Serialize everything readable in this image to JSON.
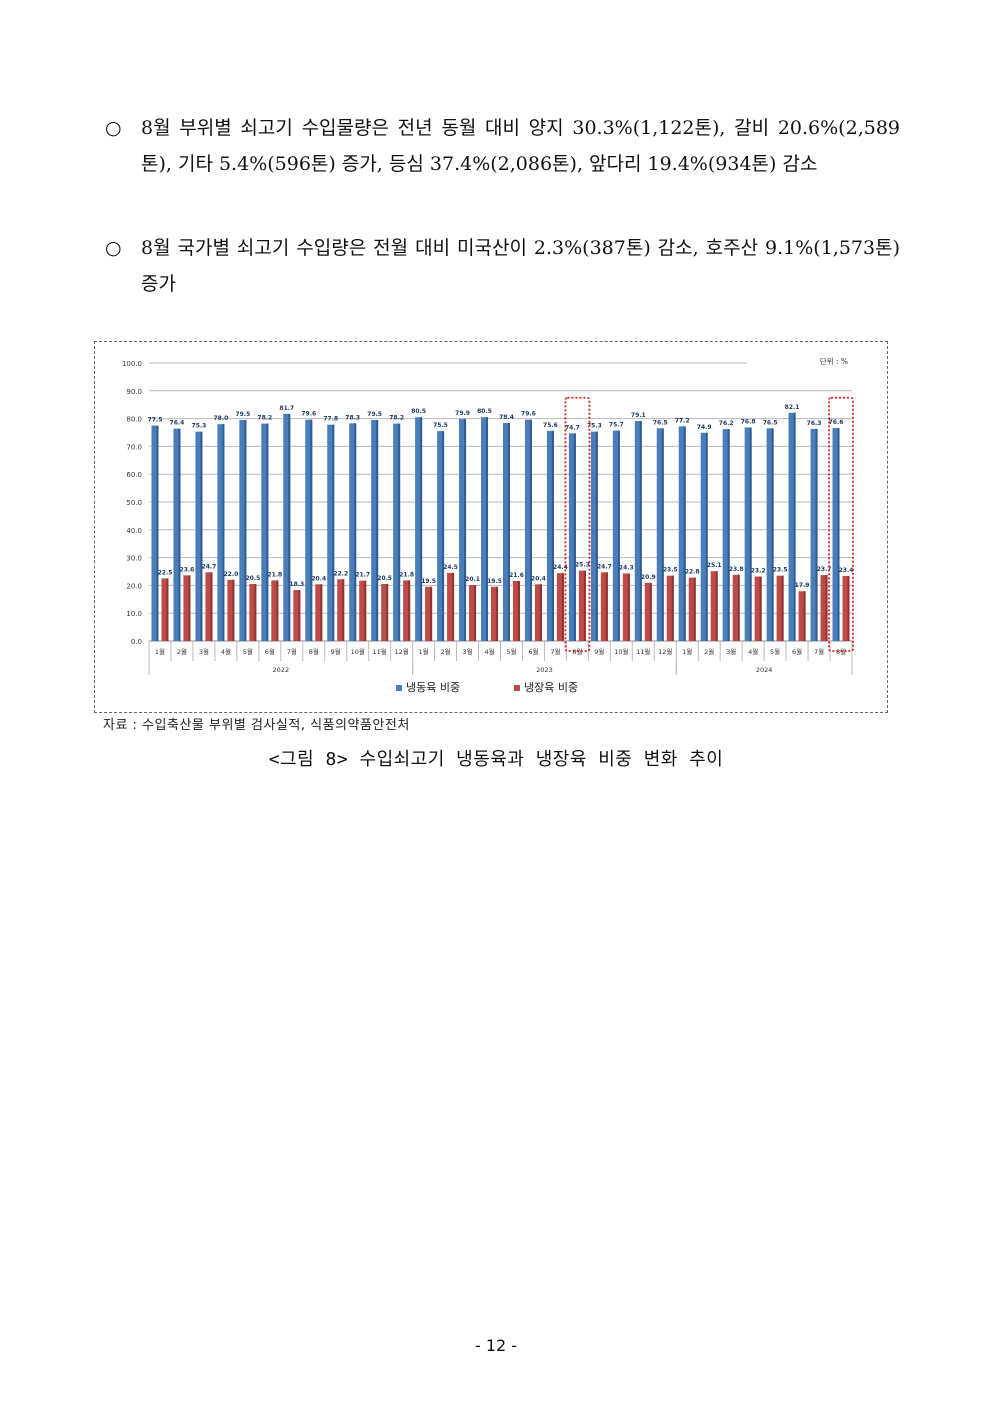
{
  "paragraphs": [
    {
      "bullet": "○",
      "text": "8월 부위별 쇠고기 수입물량은 전년 동월 대비 양지 30.3%(1,122톤), 갈비 20.6%(2,589톤), 기타 5.4%(596톤) 증가, 등심 37.4%(2,086톤), 앞다리 19.4%(934톤) 감소"
    },
    {
      "bullet": "○",
      "text": "8월 국가별 쇠고기 수입량은 전월 대비 미국산이 2.3%(387톤) 감소, 호주산 9.1%(1,573톤) 증가"
    }
  ],
  "chart_data": {
    "type": "bar",
    "unit_label": "단위 : %",
    "ylim": [
      0,
      100
    ],
    "yticks": [
      "0.0",
      "10.0",
      "20.0",
      "30.0",
      "40.0",
      "50.0",
      "60.0",
      "70.0",
      "80.0",
      "90.0",
      "100.0"
    ],
    "categories": [
      "1월",
      "2월",
      "3월",
      "4월",
      "5월",
      "6월",
      "7월",
      "8월",
      "9월",
      "10월",
      "11월",
      "12월",
      "1월",
      "2월",
      "3월",
      "4월",
      "5월",
      "6월",
      "7월",
      "8월",
      "9월",
      "10월",
      "11월",
      "12월",
      "1월",
      "2월",
      "3월",
      "4월",
      "5월",
      "6월",
      "7월",
      "8월"
    ],
    "groups": [
      {
        "label": "2022",
        "start": 0,
        "count": 12
      },
      {
        "label": "2023",
        "start": 12,
        "count": 12
      },
      {
        "label": "2024",
        "start": 24,
        "count": 8
      }
    ],
    "series": [
      {
        "name": "냉동육 비중",
        "color": "#4a7ebb",
        "values": [
          77.5,
          76.4,
          75.3,
          78.0,
          79.5,
          78.2,
          81.7,
          79.6,
          77.8,
          78.3,
          79.5,
          78.2,
          80.5,
          75.5,
          79.9,
          80.5,
          78.4,
          79.6,
          75.6,
          74.7,
          75.3,
          75.7,
          79.1,
          76.5,
          77.2,
          74.9,
          76.2,
          76.8,
          76.5,
          82.1,
          76.3,
          76.6
        ]
      },
      {
        "name": "냉장육 비중",
        "color": "#be4b48",
        "values": [
          22.5,
          23.6,
          24.7,
          22.0,
          20.5,
          21.8,
          18.3,
          20.4,
          22.2,
          21.7,
          20.5,
          21.8,
          19.5,
          24.5,
          20.1,
          19.5,
          21.6,
          20.4,
          24.4,
          25.3,
          24.7,
          24.3,
          20.9,
          23.5,
          22.8,
          25.1,
          23.8,
          23.2,
          23.5,
          17.9,
          23.7,
          23.4
        ]
      }
    ],
    "highlighted_indices": [
      19,
      31
    ],
    "grid": true,
    "legend": "bottom-center"
  },
  "source": "자료 : 수입축산물 부위별 검사실적, 식품의약품안전처",
  "caption": "<그림 8> 수입쇠고기 냉동육과 냉장육 비중 변화 추이",
  "page_number": "- 12 -"
}
